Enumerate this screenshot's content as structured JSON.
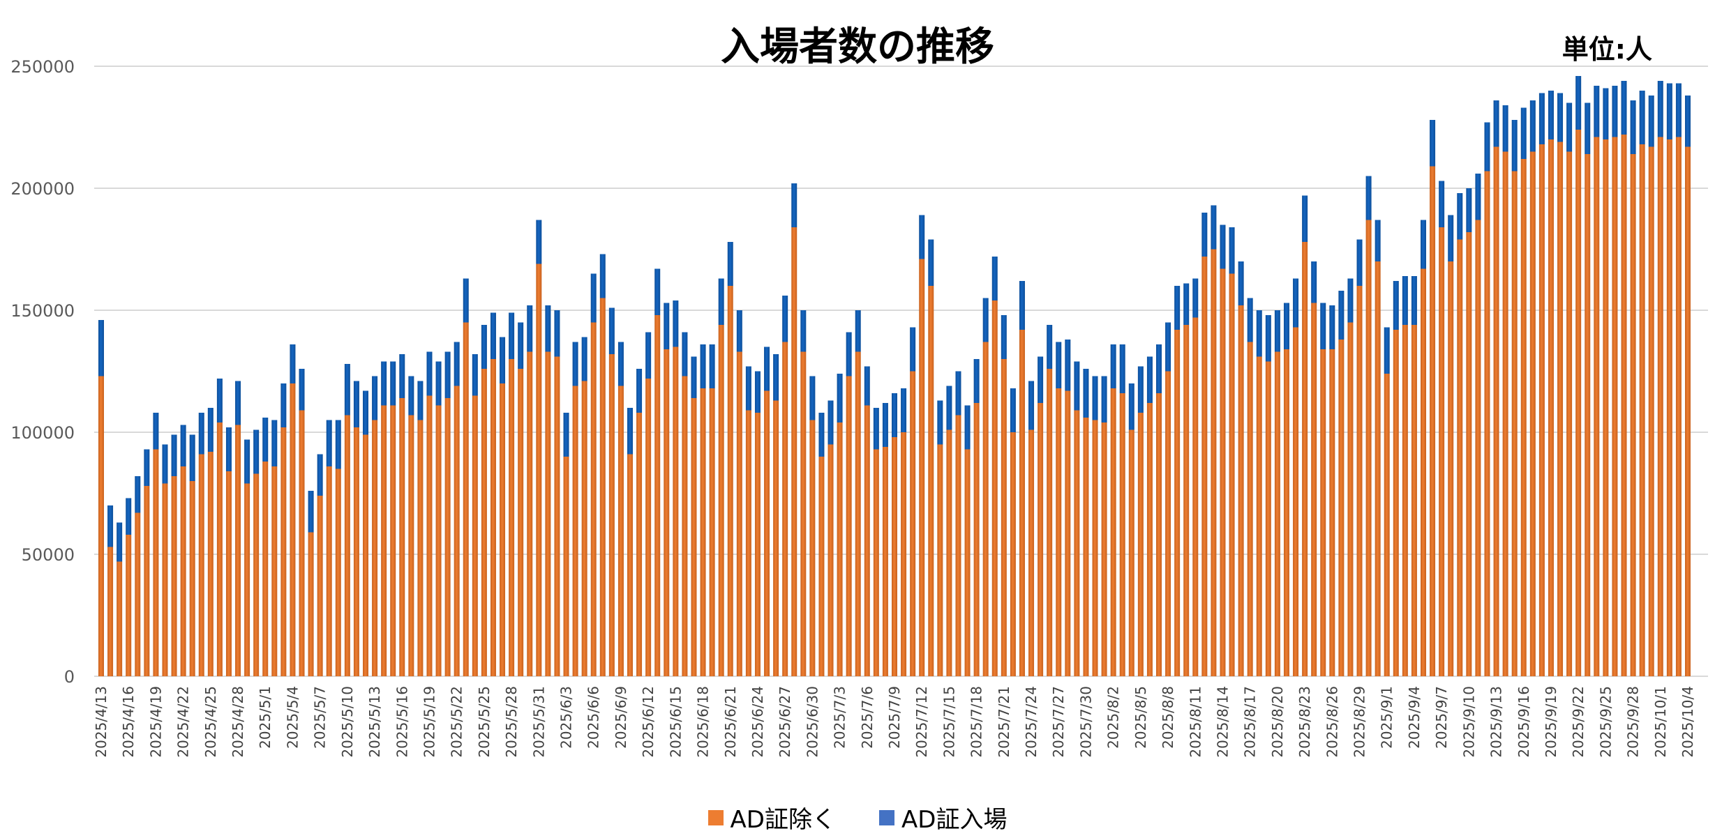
{
  "chart_data": {
    "type": "bar",
    "stacked": true,
    "title": "入場者数の推移",
    "unit_label": "単位:人",
    "start_date": "2025/4/13",
    "end_date": "2025/10/4",
    "ylim": [
      0,
      250000
    ],
    "y_ticks": [
      "0",
      "50000",
      "100000",
      "150000",
      "200000",
      "250000"
    ],
    "grid": true,
    "legend_position": "bottom",
    "x_tick_labels": [
      "2025/4/13",
      "2025/4/16",
      "2025/4/19",
      "2025/4/22",
      "2025/4/25",
      "2025/4/28",
      "2025/5/1",
      "2025/5/4",
      "2025/5/7",
      "2025/5/10",
      "2025/5/13",
      "2025/5/16",
      "2025/5/19",
      "2025/5/22",
      "2025/5/25",
      "2025/5/28",
      "2025/5/31",
      "2025/6/3",
      "2025/6/6",
      "2025/6/9",
      "2025/6/12",
      "2025/6/15",
      "2025/6/18",
      "2025/6/21",
      "2025/6/24",
      "2025/6/27",
      "2025/6/30",
      "2025/7/3",
      "2025/7/6",
      "2025/7/9",
      "2025/7/12",
      "2025/7/15",
      "2025/7/18",
      "2025/7/21",
      "2025/7/24",
      "2025/7/27",
      "2025/7/30",
      "2025/8/2",
      "2025/8/5",
      "2025/8/8",
      "2025/8/11",
      "2025/8/14",
      "2025/8/17",
      "2025/8/20",
      "2025/8/23",
      "2025/8/26",
      "2025/8/29",
      "2025/9/1",
      "2025/9/4",
      "2025/9/7",
      "2025/9/10",
      "2025/9/13",
      "2025/9/16",
      "2025/9/19",
      "2025/9/22",
      "2025/9/25",
      "2025/9/28",
      "2025/10/1",
      "2025/10/4"
    ],
    "x_tick_every": 3,
    "series": [
      {
        "name": "AD証除く",
        "color": "#ED7D31",
        "values": [
          123000,
          53000,
          47000,
          58000,
          67000,
          78000,
          93000,
          79000,
          82000,
          86000,
          80000,
          91000,
          92000,
          104000,
          84000,
          103000,
          79000,
          83000,
          88000,
          86000,
          102000,
          120000,
          109000,
          59000,
          74000,
          86000,
          85000,
          107000,
          102000,
          99000,
          105000,
          111000,
          111000,
          114000,
          107000,
          105000,
          115000,
          111000,
          114000,
          119000,
          145000,
          115000,
          126000,
          130000,
          120000,
          130000,
          126000,
          133000,
          169000,
          133000,
          131000,
          90000,
          119000,
          121000,
          145000,
          155000,
          132000,
          119000,
          91000,
          108000,
          122000,
          148000,
          134000,
          135000,
          123000,
          114000,
          118000,
          118000,
          144000,
          160000,
          133000,
          109000,
          108000,
          117000,
          113000,
          137000,
          184000,
          133000,
          105000,
          90000,
          95000,
          104000,
          123000,
          133000,
          111000,
          93000,
          94000,
          98000,
          100000,
          125000,
          171000,
          160000,
          95000,
          101000,
          107000,
          93000,
          112000,
          137000,
          154000,
          130000,
          100000,
          142000,
          101000,
          112000,
          126000,
          118000,
          117000,
          109000,
          106000,
          105000,
          104000,
          118000,
          116000,
          101000,
          108000,
          112000,
          116000,
          125000,
          142000,
          144000,
          147000,
          172000,
          175000,
          167000,
          165000,
          152000,
          137000,
          131000,
          129000,
          133000,
          134000,
          143000,
          178000,
          153000,
          134000,
          134000,
          138000,
          145000,
          160000,
          187000,
          170000,
          124000,
          142000,
          144000,
          144000,
          167000,
          209000,
          184000,
          170000,
          179000,
          182000,
          187000,
          207000,
          217000,
          215000,
          207000,
          212000,
          215000,
          218000,
          220000,
          219000,
          215000,
          224000,
          214000,
          221000,
          220000,
          221000,
          222000,
          214000,
          218000,
          217000,
          221000,
          220000,
          221000,
          217000
        ]
      },
      {
        "name": "AD証入場",
        "color": "#1565C0",
        "legend_color": "#4472C4",
        "values": [
          23000,
          17000,
          16000,
          15000,
          15000,
          15000,
          15000,
          16000,
          17000,
          17000,
          19000,
          17000,
          18000,
          18000,
          18000,
          18000,
          18000,
          18000,
          18000,
          19000,
          18000,
          16000,
          17000,
          17000,
          17000,
          19000,
          20000,
          21000,
          19000,
          18000,
          18000,
          18000,
          18000,
          18000,
          16000,
          16000,
          18000,
          18000,
          19000,
          18000,
          18000,
          17000,
          18000,
          19000,
          19000,
          19000,
          19000,
          19000,
          18000,
          19000,
          19000,
          18000,
          18000,
          18000,
          20000,
          18000,
          19000,
          18000,
          19000,
          18000,
          19000,
          19000,
          19000,
          19000,
          18000,
          17000,
          18000,
          18000,
          19000,
          18000,
          17000,
          18000,
          17000,
          18000,
          19000,
          19000,
          18000,
          17000,
          18000,
          18000,
          18000,
          20000,
          18000,
          17000,
          16000,
          17000,
          18000,
          18000,
          18000,
          18000,
          18000,
          19000,
          18000,
          18000,
          18000,
          18000,
          18000,
          18000,
          18000,
          18000,
          18000,
          20000,
          20000,
          19000,
          18000,
          19000,
          21000,
          20000,
          20000,
          18000,
          19000,
          18000,
          20000,
          19000,
          19000,
          19000,
          20000,
          20000,
          18000,
          17000,
          16000,
          18000,
          18000,
          18000,
          19000,
          18000,
          18000,
          19000,
          19000,
          17000,
          19000,
          20000,
          19000,
          17000,
          19000,
          18000,
          20000,
          18000,
          19000,
          18000,
          17000,
          19000,
          20000,
          20000,
          20000,
          20000,
          19000,
          19000,
          19000,
          19000,
          18000,
          19000,
          20000,
          19000,
          19000,
          21000,
          21000,
          21000,
          21000,
          20000,
          20000,
          20000,
          22000,
          21000,
          21000,
          21000,
          21000,
          22000,
          22000,
          22000,
          21000,
          23000,
          23000,
          22000,
          21000
        ]
      }
    ]
  }
}
